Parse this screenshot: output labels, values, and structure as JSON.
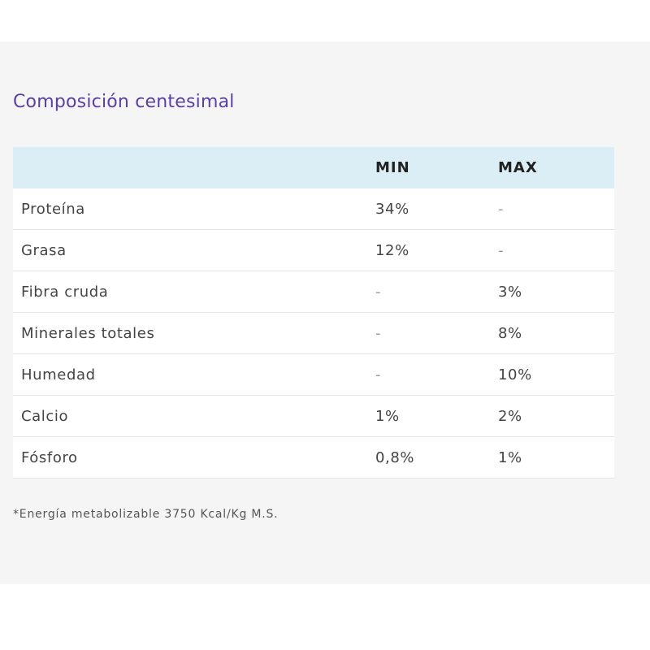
{
  "title": "Composición centesimal",
  "table": {
    "headers": {
      "name": "",
      "min": "MIN",
      "max": "MAX"
    },
    "rows": [
      {
        "name": "Proteína",
        "min": "34%",
        "max": "-"
      },
      {
        "name": "Grasa",
        "min": "12%",
        "max": "-"
      },
      {
        "name": "Fibra cruda",
        "min": "-",
        "max": "3%"
      },
      {
        "name": "Minerales totales",
        "min": "-",
        "max": "8%"
      },
      {
        "name": "Humedad",
        "min": "-",
        "max": "10%"
      },
      {
        "name": "Calcio",
        "min": "1%",
        "max": "2%"
      },
      {
        "name": "Fósforo",
        "min": "0,8%",
        "max": "1%"
      }
    ]
  },
  "footnote": "*Energía metabolizable 3750 Kcal/Kg M.S.",
  "colors": {
    "title": "#5b3fa4",
    "header_bg": "#dbeef6",
    "panel_bg": "#f5f5f5"
  }
}
